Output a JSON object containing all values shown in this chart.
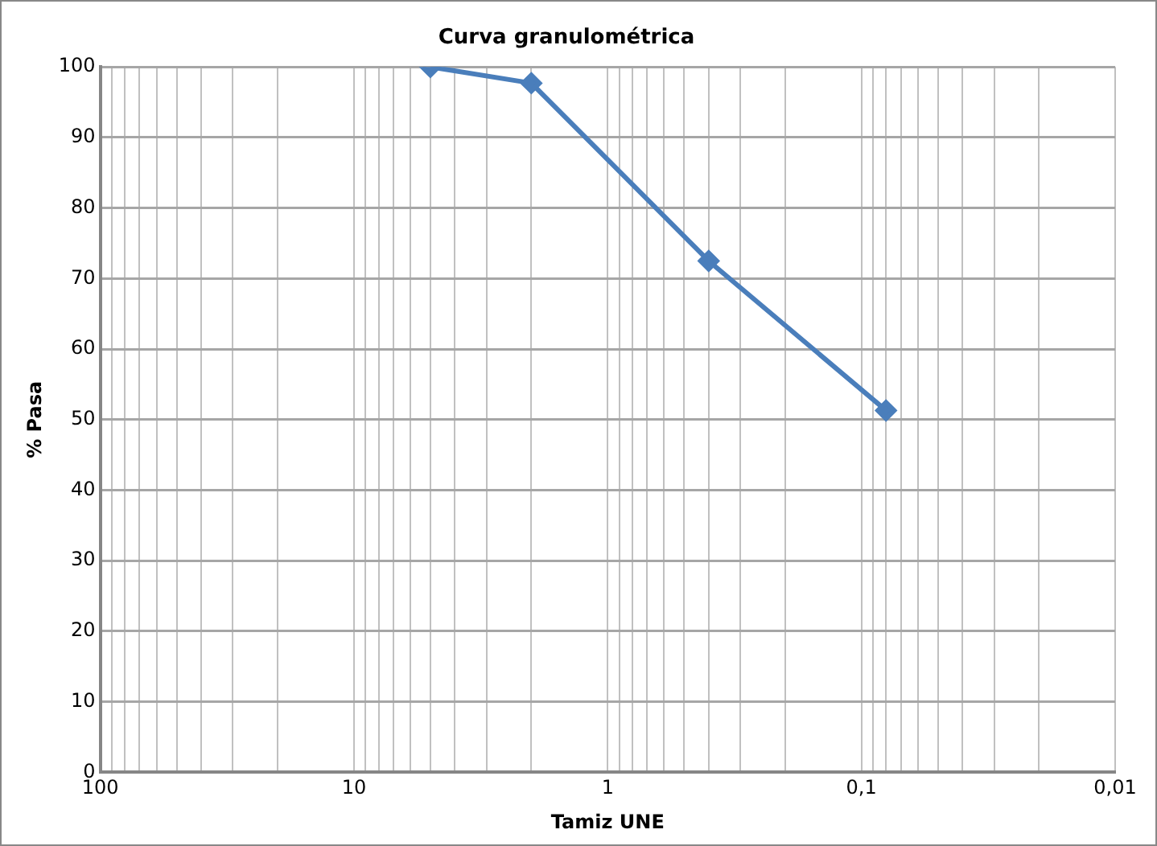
{
  "chart_data": {
    "type": "line",
    "title": "Curva granulométrica",
    "xlabel": "Tamiz UNE",
    "ylabel": "% Pasa",
    "x": [
      5,
      2,
      0.4,
      0.08
    ],
    "values": [
      100,
      97.7,
      72.5,
      51.3
    ],
    "color": "#4a7ebb",
    "log": "x",
    "xlim": [
      100,
      0.01
    ],
    "xticks": [
      {
        "value": 100,
        "label": "100"
      },
      {
        "value": 10,
        "label": "10"
      },
      {
        "value": 1,
        "label": "1"
      },
      {
        "value": 0.1,
        "label": "0,1"
      },
      {
        "value": 0.01,
        "label": "0,01"
      }
    ],
    "ylim": [
      0,
      100
    ],
    "yticks": [
      0,
      10,
      20,
      30,
      40,
      50,
      60,
      70,
      80,
      90,
      100
    ],
    "grid": true,
    "legend": false,
    "marker": "diamond",
    "line_style": "solid"
  }
}
